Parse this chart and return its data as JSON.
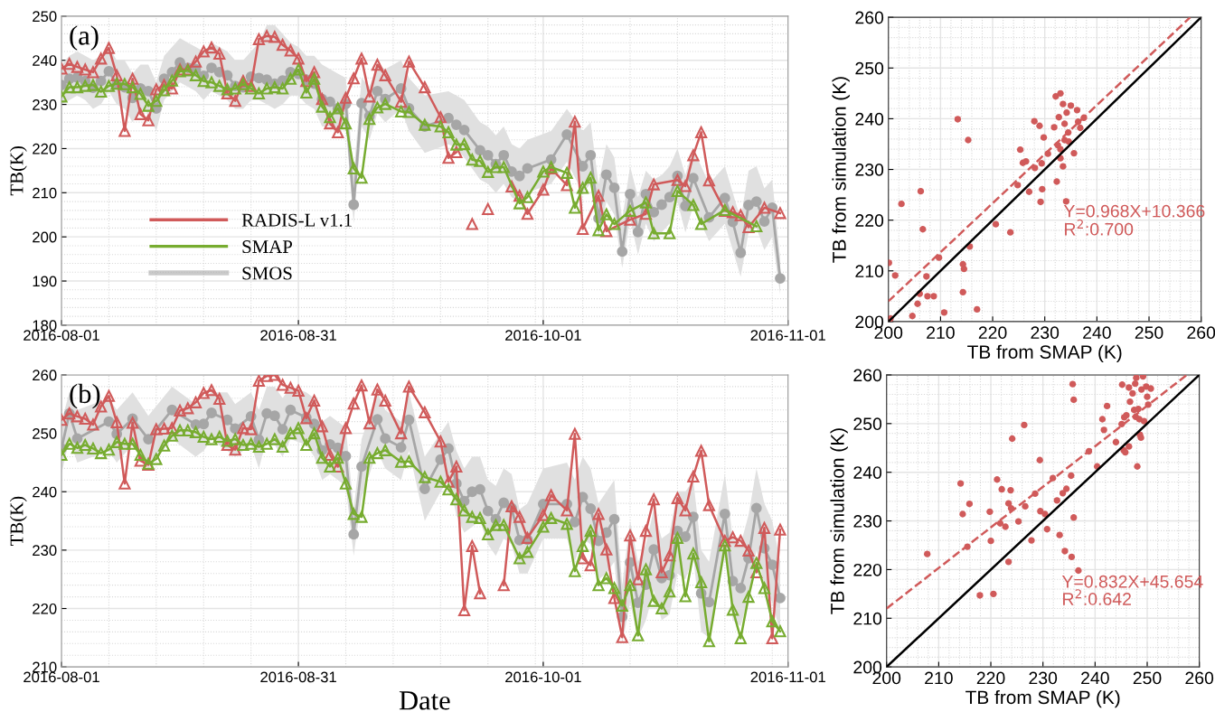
{
  "chart_data": [
    {
      "type": "line",
      "ylabel": "TB(K)",
      "xlim": [
        "2016-08-01",
        "2016-11-01"
      ],
      "xticks": [
        "2016-08-01",
        "2016-08-31",
        "2016-10-01",
        "2016-11-01"
      ],
      "ylim": [
        180,
        250
      ],
      "yticks": [
        180,
        190,
        200,
        210,
        220,
        230,
        240,
        250
      ],
      "grid": true,
      "legend": "lower left",
      "annotations": [
        "(a)"
      ],
      "series": [
        {
          "name": "RADIS-L v1.1",
          "color": "#d05a5a",
          "marker": "triangle",
          "line_style": "solid",
          "x": [
            "2016-08-01",
            "2016-08-02",
            "2016-08-03",
            "2016-08-04",
            "2016-08-05",
            "2016-08-06",
            "2016-08-07",
            "2016-08-08",
            "2016-08-09",
            "2016-08-10",
            "2016-08-11",
            "2016-08-12",
            "2016-08-13",
            "2016-08-14",
            "2016-08-15",
            "2016-08-16",
            "2016-08-17",
            "2016-08-18",
            "2016-08-19",
            "2016-08-20",
            "2016-08-21",
            "2016-08-22",
            "2016-08-23",
            "2016-08-24",
            "2016-08-25",
            "2016-08-26",
            "2016-08-27",
            "2016-08-28",
            "2016-08-29",
            "2016-08-30",
            "2016-08-31",
            "2016-09-01",
            "2016-09-02",
            "2016-09-03",
            "2016-09-04",
            "2016-09-05",
            "2016-09-06",
            "2016-09-07",
            "2016-09-08",
            "2016-09-09",
            "2016-09-10",
            "2016-09-11",
            "2016-09-13",
            "2016-09-14",
            "2016-09-16",
            "2016-09-18",
            "2016-09-19",
            "2016-09-20",
            "2016-09-21",
            "2016-09-22",
            "2016-09-23",
            "2016-09-24",
            "2016-09-25",
            "2016-09-27",
            "2016-09-28",
            "2016-09-29",
            "2016-10-01",
            "2016-10-02",
            "2016-10-04",
            "2016-10-05",
            "2016-10-06",
            "2016-10-08",
            "2016-10-09",
            "2016-10-12",
            "2016-10-14",
            "2016-10-15",
            "2016-10-18",
            "2016-10-19",
            "2016-10-20",
            "2016-10-21",
            "2016-10-22",
            "2016-10-24",
            "2016-10-25",
            "2016-10-26",
            "2016-10-27",
            "2016-10-29",
            "2016-10-31"
          ],
          "values": [
            238.1,
            239.2,
            238.5,
            237.9,
            237.3,
            240.4,
            242.8,
            236.6,
            224,
            235.8,
            227.8,
            226.4,
            233.4,
            234.4,
            233.6,
            237.9,
            237.9,
            239.7,
            242,
            242.9,
            241.5,
            232.5,
            230.8,
            235.3,
            234.2,
            244.8,
            245.5,
            245.3,
            243.5,
            242.2,
            240.4,
            235.3,
            237.3,
            231.2,
            225.7,
            223.7,
            231.5,
            235.9,
            240.4,
            231.8,
            239,
            236.6,
            230.6,
            239.7,
            233.9,
            227.1,
            217.9,
            219.2,
            null,
            202.9,
            null,
            206.3,
            null,
            211.4,
            209.3,
            205.2,
            210.7,
            215.5,
            211.7,
            226.1,
            201.8,
            209.3,
            201.3,
            203.9,
            205.2,
            211.9,
            212.9,
            211.5,
            218.5,
            223.7,
            212.8,
            205.9,
            205.6,
            204.9,
            202.2,
            206.6,
            205.4
          ]
        },
        {
          "name": "SMAP",
          "color": "#77ac30",
          "marker": "triangle",
          "line_style": "solid",
          "x": [
            "2016-08-01",
            "2016-08-02",
            "2016-08-03",
            "2016-08-04",
            "2016-08-05",
            "2016-08-06",
            "2016-08-07",
            "2016-08-08",
            "2016-08-09",
            "2016-08-10",
            "2016-08-11",
            "2016-08-12",
            "2016-08-13",
            "2016-08-14",
            "2016-08-15",
            "2016-08-16",
            "2016-08-17",
            "2016-08-18",
            "2016-08-19",
            "2016-08-20",
            "2016-08-21",
            "2016-08-22",
            "2016-08-23",
            "2016-08-24",
            "2016-08-25",
            "2016-08-26",
            "2016-08-27",
            "2016-08-28",
            "2016-08-29",
            "2016-08-30",
            "2016-08-31",
            "2016-09-01",
            "2016-09-02",
            "2016-09-03",
            "2016-09-04",
            "2016-09-05",
            "2016-09-06",
            "2016-09-07",
            "2016-09-08",
            "2016-09-09",
            "2016-09-10",
            "2016-09-11",
            "2016-09-13",
            "2016-09-14",
            "2016-09-16",
            "2016-09-18",
            "2016-09-19",
            "2016-09-20",
            "2016-09-21",
            "2016-09-22",
            "2016-09-23",
            "2016-09-24",
            "2016-09-25",
            "2016-09-26",
            "2016-09-28",
            "2016-09-29",
            "2016-10-01",
            "2016-10-02",
            "2016-10-04",
            "2016-10-05",
            "2016-10-06",
            "2016-10-07",
            "2016-10-08",
            "2016-10-09",
            "2016-10-10",
            "2016-10-12",
            "2016-10-14",
            "2016-10-15",
            "2016-10-17",
            "2016-10-18",
            "2016-10-20",
            "2016-10-21",
            "2016-10-24",
            "2016-10-28"
          ],
          "values": [
            231.8,
            233.9,
            233.9,
            234.2,
            234.4,
            232.9,
            234.2,
            234.7,
            234.6,
            233.9,
            232.4,
            229.7,
            230.8,
            233.2,
            235.4,
            237.5,
            237.7,
            236.6,
            235.3,
            235,
            234.2,
            233.4,
            233.6,
            234.6,
            233.6,
            232.5,
            233.6,
            233.9,
            233.6,
            235.8,
            237.9,
            232.7,
            235.8,
            229.5,
            227.1,
            229.1,
            225.7,
            215.5,
            213.4,
            226.7,
            229.3,
            230.1,
            228.4,
            228.3,
            225.4,
            225,
            223.7,
            220.9,
            221,
            217.5,
            217.2,
            214.7,
            215.8,
            215.8,
            207.6,
            209,
            214.8,
            215.8,
            214.5,
            206.6,
            211.1,
            213.4,
            201.5,
            205.1,
            202.9,
            205.9,
            207.8,
            200.8,
            200.8,
            210.4,
            207.2,
            202.9,
            206.1,
            202.4
          ]
        },
        {
          "name": "SMOS",
          "color": "#a6a6a6",
          "marker": "circle",
          "line_style": "solid",
          "x": [
            "2016-08-01",
            "2016-08-02",
            "2016-08-03",
            "2016-08-04",
            "2016-08-05",
            "2016-08-06",
            "2016-08-07",
            "2016-08-08",
            "2016-08-09",
            "2016-08-10",
            "2016-08-11",
            "2016-08-12",
            "2016-08-13",
            "2016-08-14",
            "2016-08-15",
            "2016-08-16",
            "2016-08-17",
            "2016-08-18",
            "2016-08-19",
            "2016-08-20",
            "2016-08-21",
            "2016-08-22",
            "2016-08-23",
            "2016-08-24",
            "2016-08-25",
            "2016-08-26",
            "2016-08-27",
            "2016-08-28",
            "2016-08-29",
            "2016-08-30",
            "2016-08-31",
            "2016-09-01",
            "2016-09-02",
            "2016-09-03",
            "2016-09-04",
            "2016-09-05",
            "2016-09-06",
            "2016-09-07",
            "2016-09-08",
            "2016-09-09",
            "2016-09-10",
            "2016-09-11",
            "2016-09-13",
            "2016-09-14",
            "2016-09-16",
            "2016-09-19",
            "2016-09-20",
            "2016-09-21",
            "2016-09-23",
            "2016-09-24",
            "2016-09-25",
            "2016-09-26",
            "2016-09-27",
            "2016-09-28",
            "2016-09-29",
            "2016-10-02",
            "2016-10-04",
            "2016-10-06",
            "2016-10-07",
            "2016-10-08",
            "2016-10-09",
            "2016-10-10",
            "2016-10-11",
            "2016-10-12",
            "2016-10-13",
            "2016-10-14",
            "2016-10-15",
            "2016-10-16",
            "2016-10-17",
            "2016-10-18",
            "2016-10-19",
            "2016-10-20",
            "2016-10-22",
            "2016-10-24",
            "2016-10-25",
            "2016-10-26",
            "2016-10-27",
            "2016-10-28",
            "2016-10-29",
            "2016-10-30",
            "2016-10-31"
          ],
          "values": [
            234.4,
            235.8,
            236.1,
            235.3,
            233.8,
            235.3,
            237.5,
            234.6,
            233.9,
            231.5,
            233.6,
            233,
            229.1,
            235.8,
            237.3,
            239.5,
            238.3,
            238,
            236.5,
            238.3,
            237.3,
            236.6,
            234.2,
            233.9,
            236.3,
            236,
            235.6,
            234.7,
            235.4,
            237.3,
            236.9,
            235.6,
            234.7,
            231.2,
            230.6,
            229.1,
            230.1,
            207.3,
            230.3,
            227.4,
            233,
            231.2,
            233.6,
            229.1,
            225,
            226.9,
            225.4,
            224.2,
            219.6,
            218.5,
            216.5,
            218.5,
            214.8,
            213.8,
            215.5,
            217.5,
            223.2,
            216,
            218.5,
            204.2,
            214.1,
            211.1,
            196.7,
            209.7,
            201.1,
            209.7,
            205.6,
            207.3,
            209,
            213.8,
            207,
            213.3,
            204.4,
            208.8,
            203.4,
            196.4,
            207.2,
            208,
            203.5,
            206.6,
            190.6
          ],
          "lower": [
            230,
            231,
            232,
            231,
            229,
            230,
            233,
            230,
            229,
            226,
            229,
            228,
            224,
            231,
            233,
            235,
            234,
            233,
            231,
            233,
            232,
            231,
            229,
            229,
            231,
            231,
            230,
            229,
            230,
            232,
            232,
            230,
            229,
            225,
            225,
            224,
            225,
            203,
            225,
            222,
            228,
            226,
            229,
            224,
            219,
            221,
            220,
            218,
            213,
            212,
            210,
            212,
            209,
            208,
            210,
            212,
            217,
            210,
            212,
            200,
            208,
            205,
            193,
            204,
            196,
            203,
            199,
            201,
            203,
            208,
            201,
            207,
            199,
            203,
            197,
            191,
            201,
            202,
            197,
            200,
            187
          ],
          "upper": [
            239,
            241,
            242,
            241,
            240,
            241,
            243,
            240,
            240,
            237,
            239,
            239,
            235,
            241,
            243,
            245,
            244,
            243,
            242,
            244,
            243,
            242,
            240,
            240,
            242,
            244,
            248,
            248,
            246,
            244,
            243,
            241,
            241,
            239,
            238,
            237,
            236,
            214,
            236,
            234,
            239,
            238,
            240,
            236,
            232,
            233,
            232,
            231,
            226,
            225,
            223,
            225,
            221,
            220,
            222,
            224,
            229,
            224,
            226,
            212,
            221,
            218,
            204,
            216,
            209,
            215,
            213,
            214,
            216,
            220,
            214,
            220,
            212,
            216,
            210,
            204,
            215,
            216,
            211,
            213,
            195
          ]
        }
      ]
    },
    {
      "type": "scatter",
      "xlabel": "TB from SMAP (K)",
      "ylabel": "TB from simulation (K)",
      "xlim": [
        200,
        260
      ],
      "ylim": [
        200,
        260
      ],
      "xticks": [
        200,
        210,
        220,
        230,
        240,
        250,
        260
      ],
      "yticks": [
        200,
        210,
        220,
        230,
        240,
        250,
        260
      ],
      "grid": true,
      "annotations": [
        "Y=0.968X+10.366",
        "R$^{2}$:0.700"
      ],
      "series": [
        {
          "color": "#d05a5a",
          "marker": "circle",
          "x": [
            200.1,
            201.3,
            200.4,
            202.5,
            204.6,
            205.6,
            206,
            206.2,
            206.6,
            207.3,
            207.5,
            208.7,
            209.7,
            210.7,
            213.3,
            214.3,
            214.5,
            214.3,
            215.3,
            215.6,
            217,
            220.6,
            223.4,
            224.8,
            225.3,
            225.8,
            226.4,
            227,
            228,
            228.1,
            229,
            229.4,
            229.5,
            229.2,
            229.8,
            230.6,
            231.8,
            232.1,
            232.3,
            232.5,
            232.7,
            233,
            233,
            233,
            233.5,
            233.5,
            233.8,
            233.8,
            234.1,
            234.2,
            234.5,
            234.6,
            235,
            235.6,
            236.2,
            236.4,
            236.8,
            237.5
          ],
          "values": [
            211.6,
            209.1,
            200.6,
            223.2,
            201.1,
            203.5,
            205.5,
            225.7,
            218.2,
            208.9,
            205,
            205,
            212.6,
            201.8,
            239.9,
            211.3,
            210.4,
            205.8,
            235.8,
            214.8,
            202.4,
            219.2,
            217.6,
            226.9,
            233.9,
            231.3,
            231.6,
            225.6,
            239.5,
            230.3,
            238.6,
            231.2,
            226.1,
            223.6,
            236.3,
            233.1,
            238.3,
            244.4,
            227.6,
            234.8,
            240.3,
            234,
            232.2,
            245,
            242.9,
            230.6,
            239,
            235.8,
            223.7,
            241.2,
            237.3,
            235.5,
            242.6,
            233.2,
            241.7,
            239.4,
            238.2,
            240.2
          ]
        },
        {
          "type": "line",
          "color": "#d05a5a",
          "marker": "none",
          "line_style": "dashed",
          "x": [
            200,
            257.9
          ],
          "values": [
            204,
            260
          ]
        },
        {
          "type": "line",
          "color": "#000000",
          "marker": "none",
          "line_style": "solid",
          "x": [
            200,
            260
          ],
          "values": [
            200,
            260
          ]
        }
      ]
    },
    {
      "type": "line",
      "xlabel": "Date",
      "ylabel": "TB(K)",
      "xlim": [
        "2016-08-01",
        "2016-11-01"
      ],
      "xticks": [
        "2016-08-01",
        "2016-08-31",
        "2016-10-01",
        "2016-11-01"
      ],
      "ylim": [
        210,
        260
      ],
      "yticks": [
        210,
        220,
        230,
        240,
        250,
        260
      ],
      "grid": true,
      "annotations": [
        "(b)"
      ],
      "series": [
        {
          "color": "#d05a5a",
          "marker": "triangle",
          "line_style": "solid",
          "x": [
            "2016-08-01",
            "2016-08-02",
            "2016-08-03",
            "2016-08-04",
            "2016-08-05",
            "2016-08-06",
            "2016-08-07",
            "2016-08-08",
            "2016-08-09",
            "2016-08-10",
            "2016-08-11",
            "2016-08-12",
            "2016-08-13",
            "2016-08-14",
            "2016-08-15",
            "2016-08-16",
            "2016-08-17",
            "2016-08-18",
            "2016-08-19",
            "2016-08-20",
            "2016-08-21",
            "2016-08-22",
            "2016-08-23",
            "2016-08-24",
            "2016-08-25",
            "2016-08-26",
            "2016-08-27",
            "2016-08-28",
            "2016-08-29",
            "2016-08-30",
            "2016-08-31",
            "2016-09-01",
            "2016-09-02",
            "2016-09-03",
            "2016-09-04",
            "2016-09-05",
            "2016-09-06",
            "2016-09-07",
            "2016-09-08",
            "2016-09-09",
            "2016-09-10",
            "2016-09-11",
            "2016-09-13",
            "2016-09-14",
            "2016-09-16",
            "2016-09-18",
            "2016-09-19",
            "2016-09-20",
            "2016-09-21",
            "2016-09-22",
            "2016-09-23",
            "2016-09-24",
            "2016-09-26",
            "2016-09-27",
            "2016-09-28",
            "2016-09-29",
            "2016-10-01",
            "2016-10-02",
            "2016-10-04",
            "2016-10-05",
            "2016-10-06",
            "2016-10-07",
            "2016-10-08",
            "2016-10-09",
            "2016-10-10",
            "2016-10-11",
            "2016-10-12",
            "2016-10-13",
            "2016-10-14",
            "2016-10-15",
            "2016-10-16",
            "2016-10-17",
            "2016-10-18",
            "2016-10-19",
            "2016-10-20",
            "2016-10-21",
            "2016-10-22",
            "2016-10-24",
            "2016-10-25",
            "2016-10-26",
            "2016-10-27",
            "2016-10-28",
            "2016-10-29",
            "2016-10-30",
            "2016-10-31"
          ],
          "values": [
            252.3,
            253.4,
            252.9,
            252.5,
            251.5,
            254.6,
            256.4,
            251.9,
            241.4,
            251.8,
            245.3,
            244.6,
            250.7,
            250.8,
            250.9,
            253.9,
            254.3,
            255.3,
            256.9,
            257.4,
            255.9,
            248,
            247.2,
            250.9,
            250.7,
            259,
            259.8,
            260,
            258.3,
            257.8,
            257.3,
            252.6,
            255.6,
            251.2,
            246.3,
            244.3,
            250.9,
            255.1,
            258.2,
            251.7,
            257.5,
            255.6,
            250,
            258,
            253.6,
            248.6,
            241.7,
            244.3,
            219.7,
            230.7,
            222.6,
            null,
            224,
            237.5,
            235.7,
            232.1,
            236,
            239.4,
            236.8,
            249.9,
            228.6,
            227.4,
            236.2,
            230.1,
            221.8,
            215.1,
            232.5,
            225,
            233.3,
            238.7,
            226.2,
            229.1,
            238.9,
            236.8,
            242.6,
            247,
            237.7,
            231.6,
            232.2,
            231.6,
            229.9,
            226.2,
            233.8,
            214.9,
            233.5
          ]
        },
        {
          "color": "#77ac30",
          "marker": "triangle",
          "line_style": "solid",
          "x": [
            "2016-08-01",
            "2016-08-02",
            "2016-08-03",
            "2016-08-04",
            "2016-08-05",
            "2016-08-06",
            "2016-08-07",
            "2016-08-08",
            "2016-08-09",
            "2016-08-10",
            "2016-08-11",
            "2016-08-12",
            "2016-08-13",
            "2016-08-14",
            "2016-08-15",
            "2016-08-16",
            "2016-08-17",
            "2016-08-18",
            "2016-08-19",
            "2016-08-20",
            "2016-08-21",
            "2016-08-22",
            "2016-08-23",
            "2016-08-24",
            "2016-08-25",
            "2016-08-26",
            "2016-08-27",
            "2016-08-28",
            "2016-08-29",
            "2016-08-30",
            "2016-08-31",
            "2016-09-01",
            "2016-09-02",
            "2016-09-03",
            "2016-09-04",
            "2016-09-05",
            "2016-09-06",
            "2016-09-07",
            "2016-09-08",
            "2016-09-09",
            "2016-09-10",
            "2016-09-11",
            "2016-09-13",
            "2016-09-14",
            "2016-09-16",
            "2016-09-18",
            "2016-09-19",
            "2016-09-20",
            "2016-09-21",
            "2016-09-22",
            "2016-09-23",
            "2016-09-24",
            "2016-09-25",
            "2016-09-26",
            "2016-09-28",
            "2016-09-29",
            "2016-10-01",
            "2016-10-02",
            "2016-10-04",
            "2016-10-05",
            "2016-10-06",
            "2016-10-07",
            "2016-10-08",
            "2016-10-09",
            "2016-10-10",
            "2016-10-11",
            "2016-10-12",
            "2016-10-13",
            "2016-10-14",
            "2016-10-15",
            "2016-10-16",
            "2016-10-17",
            "2016-10-18",
            "2016-10-19",
            "2016-10-20",
            "2016-10-21",
            "2016-10-22",
            "2016-10-24",
            "2016-10-25",
            "2016-10-26",
            "2016-10-27",
            "2016-10-28",
            "2016-10-29",
            "2016-10-30",
            "2016-10-31"
          ],
          "values": [
            246.3,
            248.2,
            247.5,
            248,
            247.4,
            246.6,
            247.2,
            248.5,
            248.2,
            248.2,
            246.3,
            244.8,
            245.6,
            247.9,
            249.6,
            250.5,
            250.5,
            250.2,
            249.4,
            249,
            249.4,
            248.7,
            249,
            248,
            248.2,
            247.7,
            248.2,
            249,
            247.7,
            250,
            250.9,
            248,
            250,
            245.8,
            244.3,
            245.8,
            241.4,
            236.2,
            235.7,
            245.8,
            246.6,
            247.1,
            245.1,
            245.2,
            242.5,
            241.7,
            240.4,
            238.7,
            236.8,
            235.7,
            235.5,
            232.7,
            234.3,
            234.3,
            228.6,
            229.7,
            234,
            235.5,
            234.5,
            226.4,
            230.7,
            233.3,
            224,
            225.2,
            223.5,
            220.5,
            224,
            215.4,
            226.7,
            221.3,
            220,
            222.9,
            232.1,
            222.1,
            229.4,
            224.5,
            214.4,
            230.8,
            219.8,
            214.9,
            222,
            227.8,
            223.5,
            217.8,
            216.1
          ]
        },
        {
          "color": "#a6a6a6",
          "marker": "circle",
          "line_style": "solid",
          "x": [
            "2016-08-01",
            "2016-08-02",
            "2016-08-03",
            "2016-08-07",
            "2016-08-08",
            "2016-08-10",
            "2016-08-12",
            "2016-08-15",
            "2016-08-18",
            "2016-08-19",
            "2016-08-20",
            "2016-08-22",
            "2016-08-23",
            "2016-08-25",
            "2016-08-26",
            "2016-08-27",
            "2016-08-28",
            "2016-08-29",
            "2016-08-30",
            "2016-09-01",
            "2016-09-02",
            "2016-09-03",
            "2016-09-04",
            "2016-09-05",
            "2016-09-06",
            "2016-09-07",
            "2016-09-08",
            "2016-09-10",
            "2016-09-11",
            "2016-09-13",
            "2016-09-14",
            "2016-09-16",
            "2016-09-18",
            "2016-09-19",
            "2016-09-20",
            "2016-09-21",
            "2016-09-22",
            "2016-09-23",
            "2016-09-24",
            "2016-09-25",
            "2016-09-26",
            "2016-09-27",
            "2016-09-28",
            "2016-09-29",
            "2016-10-01",
            "2016-10-04",
            "2016-10-05",
            "2016-10-06",
            "2016-10-07",
            "2016-10-08",
            "2016-10-09",
            "2016-10-10",
            "2016-10-11",
            "2016-10-12",
            "2016-10-13",
            "2016-10-14",
            "2016-10-15",
            "2016-10-16",
            "2016-10-17",
            "2016-10-18",
            "2016-10-19",
            "2016-10-20",
            "2016-10-21",
            "2016-10-22",
            "2016-10-24",
            "2016-10-25",
            "2016-10-26",
            "2016-10-27",
            "2016-10-28",
            "2016-10-29",
            "2016-10-30",
            "2016-10-31"
          ],
          "values": [
            247.4,
            253.4,
            249.1,
            252,
            249.9,
            252.5,
            249,
            254,
            251.5,
            251.6,
            253.5,
            252.3,
            250.8,
            252.9,
            248.9,
            253.4,
            253,
            250.7,
            254,
            252.7,
            251.6,
            247.1,
            248.1,
            247.5,
            246.1,
            232.7,
            244.3,
            252.4,
            249.1,
            247.6,
            252.3,
            240.5,
            245.5,
            247.4,
            241.4,
            238.4,
            240,
            240.4,
            236.7,
            235.3,
            238.1,
            237.2,
            231.7,
            231.8,
            237.9,
            237.9,
            234.8,
            239.1,
            237.1,
            231.6,
            233,
            235.3,
            218.6,
            227.9,
            221,
            224.1,
            230.1,
            225.2,
            225.7,
            233.3,
            232.3,
            235.7,
            222.6,
            221.1,
            236.2,
            224.7,
            223.5,
            228.6,
            237.2,
            230.3,
            227.5,
            221.8
          ],
          "lower": [
            243,
            249,
            245,
            247,
            245,
            248,
            244,
            249,
            246,
            247,
            249,
            247,
            246,
            248,
            244,
            249,
            248,
            246,
            249,
            248,
            246,
            242,
            243,
            242,
            241,
            229,
            239,
            247,
            244,
            242,
            247,
            235,
            240,
            242,
            236,
            233,
            234,
            235,
            231,
            229,
            232,
            231,
            226,
            226,
            232,
            232,
            228,
            232,
            231,
            225,
            226,
            228,
            214,
            221,
            215,
            218,
            223,
            218,
            219,
            226,
            225,
            229,
            216,
            215,
            229,
            218,
            217,
            222,
            230,
            224,
            221,
            216
          ],
          "upper": [
            252,
            257,
            254,
            256,
            254,
            257,
            253,
            258,
            255,
            256,
            257,
            257,
            255,
            257,
            254,
            258,
            258,
            256,
            258,
            257,
            256,
            252,
            253,
            252,
            251,
            237,
            249,
            257,
            254,
            252,
            257,
            246,
            250,
            252,
            247,
            244,
            246,
            246,
            242,
            241,
            244,
            243,
            237,
            238,
            244,
            245,
            242,
            246,
            244,
            238,
            240,
            242,
            224,
            235,
            228,
            231,
            237,
            232,
            233,
            240,
            240,
            242,
            230,
            228,
            243,
            232,
            231,
            236,
            244,
            238,
            235,
            228
          ]
        }
      ]
    },
    {
      "type": "scatter",
      "xlabel": "TB from SMAP (K)",
      "ylabel": "TB from simulation (K)",
      "xlim": [
        200,
        260
      ],
      "ylim": [
        200,
        260
      ],
      "xticks": [
        200,
        210,
        220,
        230,
        240,
        250,
        260
      ],
      "yticks": [
        200,
        210,
        220,
        230,
        240,
        250,
        260
      ],
      "grid": true,
      "annotations": [
        "Y=0.832X+45.654",
        "R$^{2}$:0.642"
      ],
      "series": [
        {
          "color": "#d05a5a",
          "marker": "circle",
          "x": [
            207.8,
            217.9,
            220.5,
            214.2,
            214.6,
            215.9,
            215.5,
            219.8,
            220,
            221.2,
            222.1,
            221.8,
            222.8,
            223.4,
            223.4,
            223.9,
            223.8,
            224.1,
            225.3,
            226.4,
            226.6,
            227.8,
            228.5,
            229.4,
            229.5,
            230.4,
            230.8,
            231.9,
            232.7,
            233.2,
            233.8,
            234.2,
            234.5,
            235.4,
            235.5,
            235.7,
            235.9,
            235.9,
            236.8,
            238.8,
            240.4,
            241.4,
            241.7,
            242.3,
            244,
            245.1,
            245.2,
            245.5,
            245.6,
            245.8,
            246,
            246.5,
            246.5,
            246.7,
            247.2,
            247.5,
            247.7,
            247.8,
            247.9,
            248.1,
            248.3,
            248.5,
            248.6,
            248.8,
            248.9,
            249.2,
            249.4,
            249.8,
            250,
            250.2,
            250.7
          ],
          "values": [
            223.2,
            214.7,
            215,
            237.7,
            231.4,
            233.5,
            224.7,
            231.9,
            225.9,
            238.5,
            236.5,
            229.5,
            228.8,
            221.6,
            233.6,
            232.6,
            236.3,
            246.9,
            229.9,
            249.7,
            233,
            226,
            235.6,
            242.5,
            232,
            231.4,
            228.3,
            238.8,
            234.2,
            227.1,
            235.7,
            223.8,
            236.6,
            239.3,
            222.6,
            258.1,
            254.9,
            230.7,
            219.8,
            244.3,
            241.2,
            250.9,
            248.7,
            253.6,
            246.2,
            249.9,
            258,
            244.5,
            251.3,
            244.1,
            251.7,
            245.3,
            257.4,
            254.5,
            256.2,
            252.8,
            258.2,
            251.4,
            259.4,
            241.2,
            253,
            250.9,
            247.7,
            247.1,
            257,
            259.7,
            250.5,
            257.6,
            255.5,
            253.9,
            257.2
          ]
        },
        {
          "type": "line",
          "color": "#d05a5a",
          "marker": "none",
          "line_style": "dashed",
          "x": [
            200,
            257.6
          ],
          "values": [
            212,
            260
          ]
        },
        {
          "type": "line",
          "color": "#000000",
          "marker": "none",
          "line_style": "solid",
          "x": [
            200,
            260
          ],
          "values": [
            200,
            260
          ]
        }
      ]
    }
  ]
}
